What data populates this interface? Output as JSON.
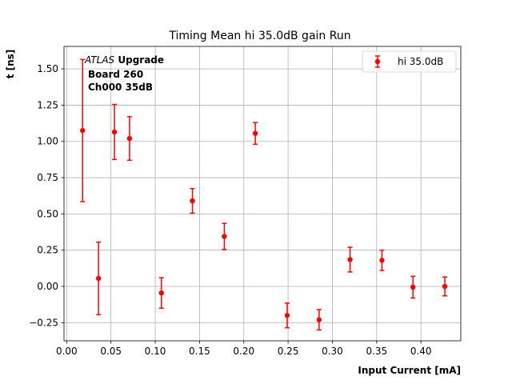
{
  "chart_data": {
    "type": "scatter",
    "title": "Timing Mean hi 35.0dB gain Run",
    "xlabel": "Input Current [mA]",
    "ylabel": "t [ns]",
    "xlim": [
      -0.003,
      0.445
    ],
    "ylim": [
      -0.375,
      1.655
    ],
    "xticks": [
      "0.00",
      "0.05",
      "0.10",
      "0.15",
      "0.20",
      "0.25",
      "0.30",
      "0.35",
      "0.40"
    ],
    "xtick_values": [
      0.0,
      0.05,
      0.1,
      0.15,
      0.2,
      0.25,
      0.3,
      0.35,
      0.4
    ],
    "yticks": [
      "−0.25",
      "0.00",
      "0.25",
      "0.50",
      "0.75",
      "1.00",
      "1.25",
      "1.50"
    ],
    "ytick_values": [
      -0.25,
      0.0,
      0.25,
      0.5,
      0.75,
      1.0,
      1.25,
      1.5
    ],
    "grid": true,
    "legend_position": "top-right",
    "series": [
      {
        "name": "hi 35.0dB",
        "color": "#ff0000",
        "x": [
          0.018,
          0.036,
          0.054,
          0.071,
          0.107,
          0.142,
          0.178,
          0.213,
          0.249,
          0.285,
          0.32,
          0.356,
          0.391,
          0.427
        ],
        "y": [
          1.075,
          0.055,
          1.065,
          1.02,
          -0.045,
          0.59,
          0.345,
          1.055,
          -0.2,
          -0.23,
          0.185,
          0.18,
          -0.005,
          0.0
        ],
        "yerr": [
          0.49,
          0.25,
          0.19,
          0.15,
          0.105,
          0.085,
          0.09,
          0.075,
          0.085,
          0.07,
          0.085,
          0.07,
          0.075,
          0.065
        ]
      }
    ],
    "annotations": {
      "line1_italic": "ATLAS",
      "line1_bold": " Upgrade",
      "line2": "Board 260",
      "line3": "Ch000 35dB"
    }
  }
}
